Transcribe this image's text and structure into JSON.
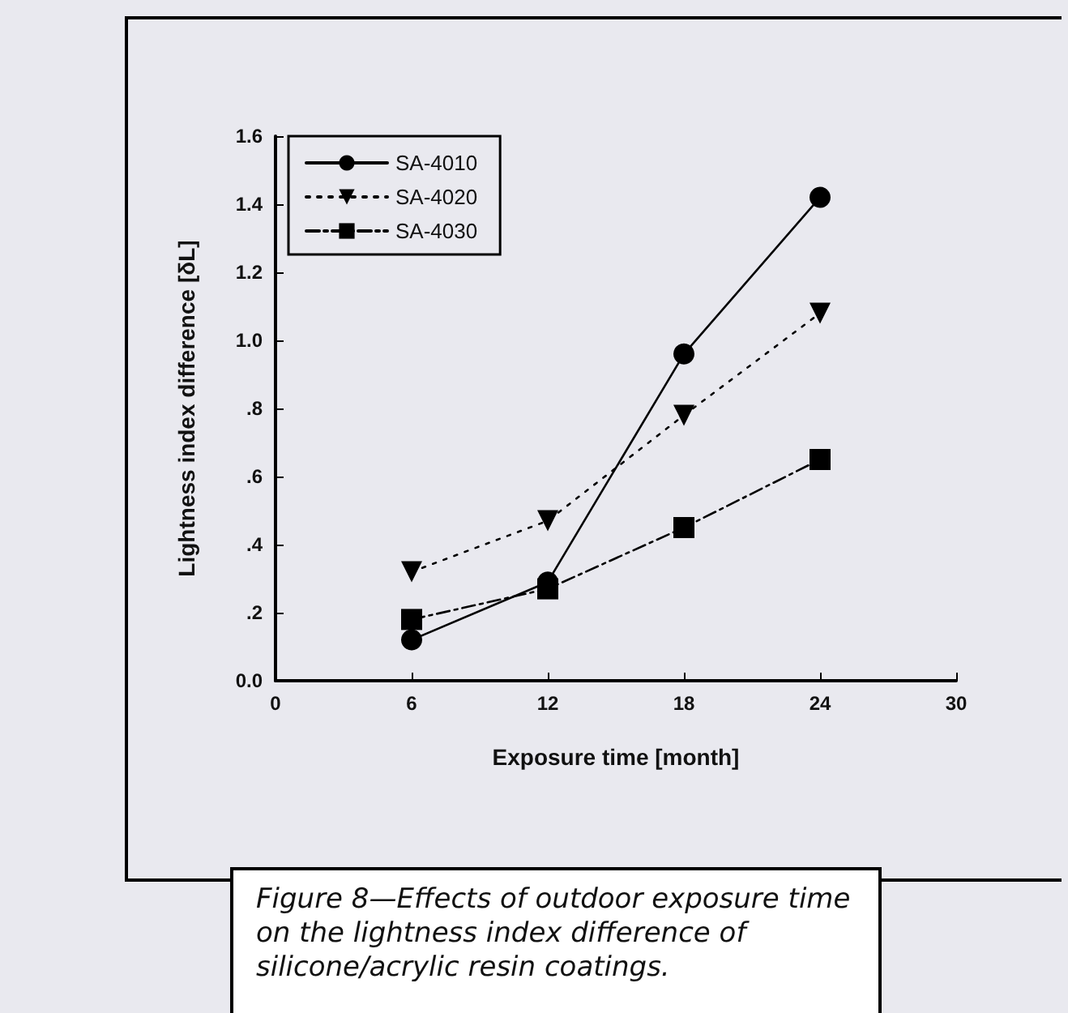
{
  "chart_data": {
    "type": "line",
    "xlabel": "Exposure time [month]",
    "ylabel": "Lightness index difference [δL]",
    "x": [
      6,
      12,
      18,
      24
    ],
    "series": [
      {
        "name": "SA-4010",
        "color": "#000000",
        "values": [
          0.12,
          0.29,
          0.96,
          1.42
        ],
        "marker": "circle",
        "line_style": "solid"
      },
      {
        "name": "SA-4020",
        "color": "#000000",
        "values": [
          0.32,
          0.47,
          0.78,
          1.08
        ],
        "marker": "triangle",
        "line_style": "dotted"
      },
      {
        "name": "SA-4030",
        "color": "#000000",
        "values": [
          0.18,
          0.27,
          0.45,
          0.65
        ],
        "marker": "square",
        "line_style": "dashed"
      }
    ],
    "xlim": [
      0,
      30
    ],
    "xticks": [
      0,
      6,
      12,
      18,
      24,
      30
    ],
    "ylim": [
      0,
      1.6
    ],
    "yticks": [
      {
        "value": 0,
        "label": "0.0"
      },
      {
        "value": 0.2,
        "label": ".2"
      },
      {
        "value": 0.4,
        "label": ".4"
      },
      {
        "value": 0.6,
        "label": ".6"
      },
      {
        "value": 0.8,
        "label": ".8"
      },
      {
        "value": 1.0,
        "label": "1.0"
      },
      {
        "value": 1.2,
        "label": "1.2"
      },
      {
        "value": 1.4,
        "label": "1.4"
      },
      {
        "value": 1.6,
        "label": "1.6"
      }
    ],
    "grid": false,
    "legend": "top left",
    "annotations": [
      "Figure 8—Effects of outdoor exposure time on the lightness index difference of silicone/acrylic resin coatings."
    ]
  }
}
